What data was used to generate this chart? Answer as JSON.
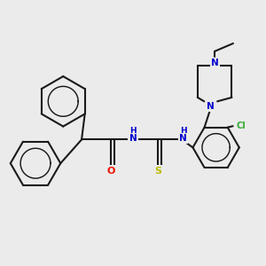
{
  "bg_color": "#ebebeb",
  "line_color": "#1a1a1a",
  "O_color": "#ee1100",
  "S_color": "#bbbb00",
  "N_color": "#0000cc",
  "Cl_color": "#33aa33",
  "lw": 1.5,
  "fs": 7.0,
  "fig_w": 3.0,
  "fig_h": 3.0,
  "dpi": 100,
  "xlim": [
    0,
    10
  ],
  "ylim": [
    1.5,
    10.5
  ]
}
